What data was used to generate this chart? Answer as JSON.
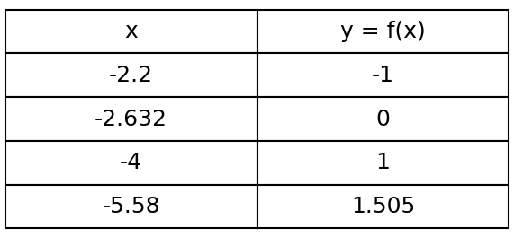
{
  "col_headers": [
    "x",
    "y = f(x)"
  ],
  "rows": [
    [
      "-2.2",
      "-1"
    ],
    [
      "-2.632",
      "0"
    ],
    [
      "-4",
      "1"
    ],
    [
      "-5.58",
      "1.505"
    ]
  ],
  "background_color": "#ffffff",
  "border_color": "#000000",
  "header_font_size": 18,
  "cell_font_size": 18,
  "border_linewidth": 1.5,
  "fig_width": 5.71,
  "fig_height": 2.65,
  "dpi": 100
}
